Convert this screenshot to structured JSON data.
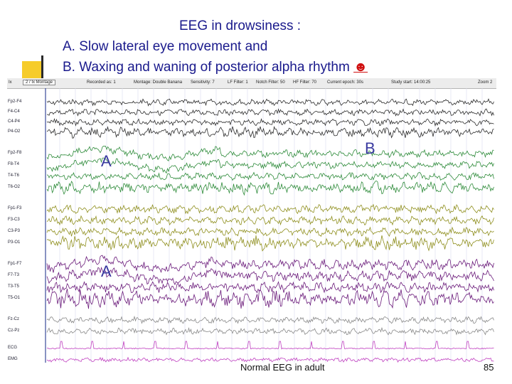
{
  "slide": {
    "title_line1": "EEG in drowsiness :",
    "title_line2": "A. Slow lateral eye movement and",
    "title_line3": "B. Waxing and waning of posterior alpha rhythm",
    "smiley": "☻",
    "footer_caption": "Normal EEG in adult",
    "page_number": "85"
  },
  "eeg": {
    "toolbar": {
      "left_label": "Ix",
      "select_value": "2 / Ix Montage",
      "recorded": "Recorded as: 1",
      "montage": "Montage: Double Banana",
      "sensitivity": "Sensitivity: 7",
      "lf_filter": "LF Filter: 1",
      "notch_filter": "Notch Filter: 50",
      "hf_filter": "HF Filter: 70",
      "current_epoch": "Current epoch: 30s",
      "study_start": "Study start: 14:00:25",
      "right_label": "Zoom 2"
    },
    "channels": [
      "Fp2-F4",
      "F4-C4",
      "C4-P4",
      "P4-O2",
      "Fp2-F8",
      "F8-T4",
      "T4-T6",
      "T6-O2",
      "Fp1-F3",
      "F3-C3",
      "C3-P3",
      "P3-O1",
      "Fp1-F7",
      "F7-T3",
      "T3-T5",
      "T5-O1",
      "Fz-Cz",
      "Cz-Pz",
      "ECG",
      "EMG"
    ],
    "markers": [
      "A",
      "B",
      "A"
    ],
    "colors": {
      "group1": "#2c2c2c",
      "group2": "#2e8b3a",
      "group3": "#8f8f1e",
      "group4": "#6a1a7a",
      "group5": "#888888",
      "ecg": "#c040c0"
    }
  }
}
